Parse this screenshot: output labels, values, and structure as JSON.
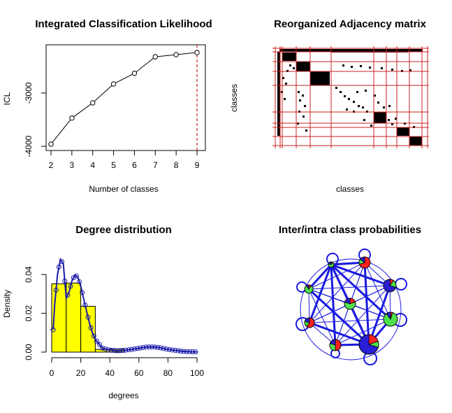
{
  "panels": {
    "icl": {
      "title": "Integrated Classification Likelihood",
      "xlabel": "Number of classes",
      "ylabel": "ICL"
    },
    "adj": {
      "title": "Reorganized Adjacency matrix",
      "xlabel": "classes",
      "ylabel": "classes"
    },
    "deg": {
      "title": "Degree distribution",
      "xlabel": "degrees",
      "ylabel": "Density"
    },
    "net": {
      "title": "Inter/intra class probabilities"
    }
  },
  "chart_data": [
    {
      "id": "icl",
      "type": "line",
      "title": "Integrated Classification Likelihood",
      "xlabel": "Number of classes",
      "ylabel": "ICL",
      "x": [
        2,
        3,
        4,
        5,
        6,
        7,
        8,
        9
      ],
      "y": [
        -3960,
        -3470,
        -3185,
        -2830,
        -2630,
        -2320,
        -2280,
        -2240
      ],
      "xlim": [
        2,
        9
      ],
      "ylim": [
        -4000,
        -2200
      ],
      "xticks": [
        "2",
        "3",
        "4",
        "5",
        "6",
        "7",
        "8",
        "9"
      ],
      "yticks": [
        -4000,
        -3000
      ],
      "ytick_labels": [
        "-4000",
        "-3000"
      ],
      "vline_at": 9,
      "vline_color": "#cc2222"
    },
    {
      "id": "adj",
      "type": "heatmap",
      "title": "Reorganized Adjacency matrix",
      "xlabel": "classes",
      "ylabel": "classes",
      "grid_color": "#cc2222"
    },
    {
      "id": "deg",
      "type": "bar",
      "title": "Degree distribution",
      "xlabel": "degrees",
      "ylabel": "Density",
      "bins": [
        [
          0,
          10
        ],
        [
          10,
          20
        ],
        [
          20,
          30
        ],
        [
          30,
          40
        ],
        [
          40,
          50
        ]
      ],
      "values": [
        0.0352,
        0.0356,
        0.0236,
        0.0014,
        0.0016
      ],
      "bar_color": "#ffff00",
      "xlim": [
        0,
        100
      ],
      "ylim": [
        0,
        0.048
      ],
      "xticks": [
        "0",
        "20",
        "40",
        "60",
        "80",
        "100"
      ],
      "yticks": [
        "0.00",
        "0.02",
        "0.04"
      ],
      "curve": {
        "x": [
          1,
          2,
          4,
          6,
          8,
          10,
          12,
          14,
          16,
          18,
          20,
          22,
          24,
          26,
          28,
          30,
          35,
          40,
          45,
          50,
          55,
          60,
          65,
          70,
          75,
          80,
          85,
          90,
          95,
          100
        ],
        "y": [
          0.0115,
          0.024,
          0.04,
          0.0478,
          0.0455,
          0.0278,
          0.031,
          0.0369,
          0.0398,
          0.0387,
          0.0339,
          0.0275,
          0.021,
          0.015,
          0.01,
          0.0066,
          0.002,
          0.001,
          0.0007,
          0.0009,
          0.0014,
          0.002,
          0.0026,
          0.0027,
          0.0022,
          0.0014,
          0.0009,
          0.0004,
          0.0002,
          0.0001
        ],
        "color": "#1a1aa8"
      }
    },
    {
      "id": "net",
      "type": "other",
      "title": "Inter/intra class probabilities",
      "node_colors": [
        "#ff2020",
        "#4fe04f",
        "#2a1fd6"
      ],
      "edge_color": "#1a1ae0"
    }
  ]
}
